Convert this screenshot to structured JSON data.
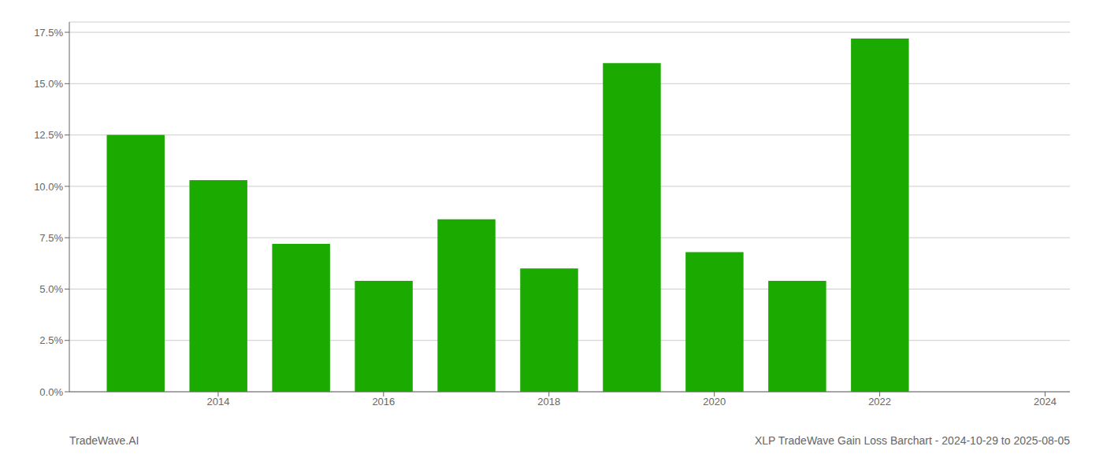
{
  "chart_data": {
    "type": "bar",
    "x": [
      2013,
      2014,
      2015,
      2016,
      2017,
      2018,
      2019,
      2020,
      2021,
      2022,
      2023
    ],
    "values": [
      0.125,
      0.103,
      0.072,
      0.054,
      0.084,
      0.06,
      0.16,
      0.068,
      0.054,
      0.172,
      0.0
    ],
    "color": "#1aaa00",
    "xlim": [
      2012.2,
      2024.3
    ],
    "xticks": [
      2014,
      2016,
      2018,
      2020,
      2022,
      2024
    ],
    "ylim": [
      0.0,
      0.18
    ],
    "yticks": [
      {
        "value": 0.0,
        "label": "0.0%"
      },
      {
        "value": 0.025,
        "label": "2.5%"
      },
      {
        "value": 0.05,
        "label": "5.0%"
      },
      {
        "value": 0.075,
        "label": "7.5%"
      },
      {
        "value": 0.1,
        "label": "10.0%"
      },
      {
        "value": 0.125,
        "label": "12.5%"
      },
      {
        "value": 0.15,
        "label": "15.0%"
      },
      {
        "value": 0.175,
        "label": "17.5%"
      }
    ],
    "grid": true,
    "annotations": [
      "TradeWave.AI",
      "XLP TradeWave Gain Loss Barchart - 2024-10-29 to 2025-08-05"
    ]
  }
}
